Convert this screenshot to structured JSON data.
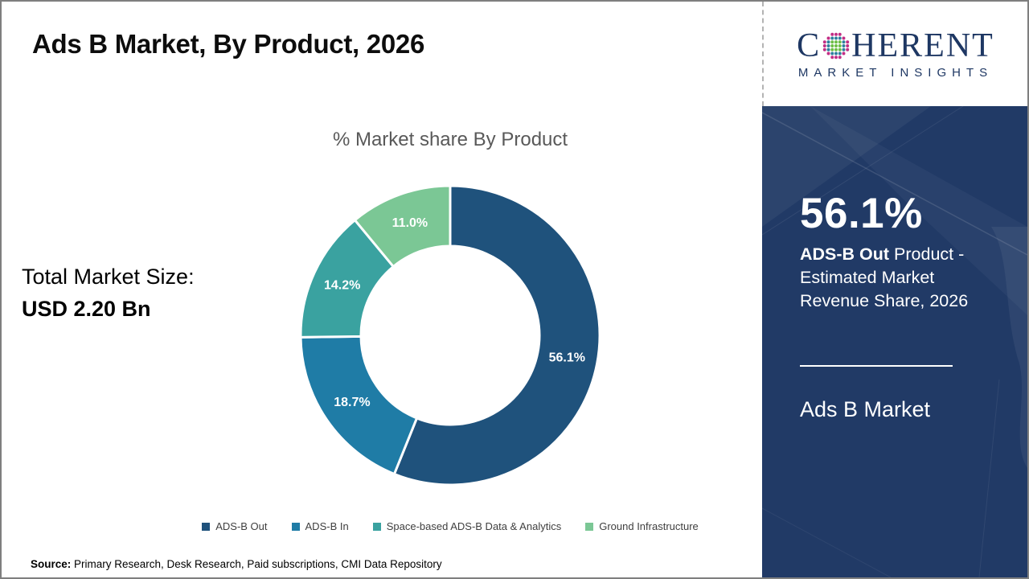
{
  "page": {
    "title": "Ads B Market, By Product, 2026",
    "source_label": "Source:",
    "source_text": " Primary Research, Desk Research, Paid subscriptions, CMI Data Repository"
  },
  "logo": {
    "word_start": "C",
    "word_end": "HERENT",
    "subtitle": "MARKET INSIGHTS",
    "text_color": "#1e3763",
    "globe_colors": {
      "outer": "#c22e85",
      "mid": "#2e7f9e",
      "inner": "#6cbe45"
    }
  },
  "left_panel": {
    "market_size_label": "Total Market Size:",
    "market_size_value": "USD 2.20 Bn"
  },
  "chart_data": {
    "type": "pie",
    "donut": true,
    "title": "% Market share By Product",
    "units": "%",
    "start_angle_deg": 0,
    "direction": "clockwise",
    "legend_position": "bottom",
    "segments": [
      {
        "label": "ADS-B Out",
        "value": 56.1,
        "display": "56.1%",
        "color": "#1f527c"
      },
      {
        "label": "ADS-B In",
        "value": 18.7,
        "display": "18.7%",
        "color": "#1f7ca6"
      },
      {
        "label": "Space-based ADS-B Data & Analytics",
        "value": 14.2,
        "display": "14.2%",
        "color": "#3aa2a0"
      },
      {
        "label": "Ground Infrastructure",
        "value": 11.0,
        "display": "11.0%",
        "color": "#7bc795"
      }
    ]
  },
  "sidebar": {
    "bg_color": "#213a66",
    "highlight_value": "56.1%",
    "highlight_bold": "ADS-B Out",
    "highlight_rest": " Product - Estimated Market Revenue Share, 2026",
    "footer_title": "Ads B Market"
  }
}
